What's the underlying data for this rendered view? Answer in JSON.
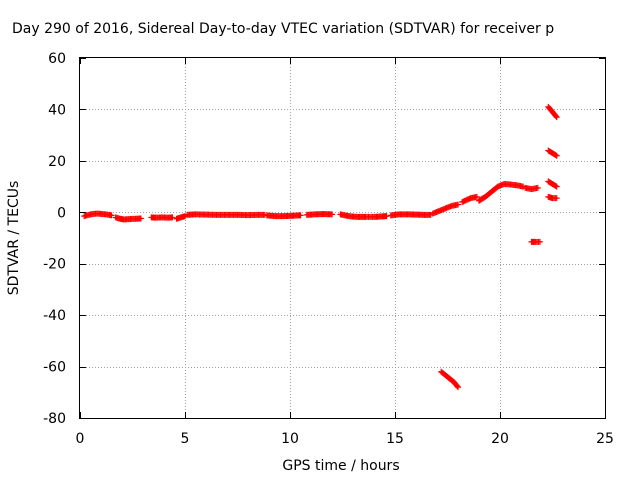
{
  "chart_data": {
    "type": "scatter",
    "title": "Day 290 of 2016, Sidereal Day-to-day VTEC variation (SDTVAR) for receiver p",
    "xlabel": "GPS time / hours",
    "ylabel": "SDTVAR / TECUs",
    "xlim": [
      0,
      25
    ],
    "ylim": [
      -80,
      60
    ],
    "xticks": [
      "0",
      "5",
      "10",
      "15",
      "20",
      "25"
    ],
    "yticks": [
      "-80",
      "-60",
      "-40",
      "-20",
      "0",
      "20",
      "40",
      "60"
    ],
    "grid": true,
    "legend": "none",
    "marker_color": "#ff0000",
    "series": [
      {
        "segments": [
          {
            "x": [
              0.2,
              0.5,
              0.8,
              1.1,
              1.4,
              1.5
            ],
            "y": [
              -1.5,
              -0.8,
              -0.5,
              -0.7,
              -1.0,
              -1.2
            ]
          },
          {
            "x": [
              1.7,
              1.9,
              2.1,
              2.4,
              2.7,
              2.9
            ],
            "y": [
              -2.0,
              -2.5,
              -2.8,
              -2.6,
              -2.5,
              -2.4
            ]
          },
          {
            "x": [
              3.4,
              3.6,
              3.9,
              4.2,
              4.4
            ],
            "y": [
              -2.0,
              -2.1,
              -2.0,
              -2.1,
              -2.0
            ]
          },
          {
            "x": [
              4.6,
              4.8,
              5.0
            ],
            "y": [
              -2.5,
              -2.0,
              -1.5
            ]
          },
          {
            "x": [
              5.1,
              5.5,
              6.0,
              6.5,
              7.0,
              7.5,
              8.0,
              8.5,
              8.8
            ],
            "y": [
              -1.0,
              -0.8,
              -0.9,
              -1.0,
              -1.0,
              -1.0,
              -1.1,
              -1.0,
              -1.0
            ]
          },
          {
            "x": [
              8.9,
              9.3,
              9.6,
              10.0,
              10.4,
              10.5
            ],
            "y": [
              -1.2,
              -1.5,
              -1.5,
              -1.4,
              -1.2,
              -1.2
            ]
          },
          {
            "x": [
              10.8,
              11.2,
              11.6,
              12.0
            ],
            "y": [
              -1.0,
              -0.8,
              -0.7,
              -0.8
            ]
          },
          {
            "x": [
              12.4,
              12.8,
              13.2,
              13.6,
              14.0,
              14.4,
              14.6
            ],
            "y": [
              -0.8,
              -1.5,
              -1.8,
              -1.8,
              -1.8,
              -1.6,
              -1.5
            ]
          },
          {
            "x": [
              14.8,
              15.2,
              15.6,
              16.0,
              16.4,
              16.7
            ],
            "y": [
              -1.2,
              -0.8,
              -0.8,
              -0.9,
              -1.0,
              -1.0
            ]
          },
          {
            "x": [
              16.8,
              17.1,
              17.4,
              17.7,
              18.0
            ],
            "y": [
              -0.5,
              0.5,
              1.5,
              2.5,
              3.0
            ]
          },
          {
            "x": [
              18.2,
              18.6,
              18.9
            ],
            "y": [
              4.0,
              5.5,
              6.0
            ]
          },
          {
            "x": [
              19.0,
              19.3,
              19.6,
              19.9,
              20.2,
              20.5,
              20.8,
              21.1
            ],
            "y": [
              4.5,
              6.0,
              8.0,
              10.0,
              11.0,
              10.8,
              10.5,
              10.0
            ]
          },
          {
            "x": [
              21.2,
              21.5,
              21.8
            ],
            "y": [
              9.5,
              9.0,
              9.5
            ]
          },
          {
            "x": [
              21.5,
              21.7,
              21.9
            ],
            "y": [
              -11.5,
              -11.5,
              -11.5
            ]
          },
          {
            "x": [
              17.2,
              17.5,
              17.8,
              18.0
            ],
            "y": [
              -62,
              -64,
              -66,
              -68
            ]
          },
          {
            "x": [
              22.3,
              22.5,
              22.7
            ],
            "y": [
              41,
              39,
              37
            ]
          },
          {
            "x": [
              22.3,
              22.5,
              22.7
            ],
            "y": [
              24,
              23,
              22
            ]
          },
          {
            "x": [
              22.3,
              22.5,
              22.7
            ],
            "y": [
              12,
              11,
              10
            ]
          },
          {
            "x": [
              22.3,
              22.5,
              22.7
            ],
            "y": [
              6,
              5.5,
              5.5
            ]
          }
        ]
      }
    ]
  }
}
